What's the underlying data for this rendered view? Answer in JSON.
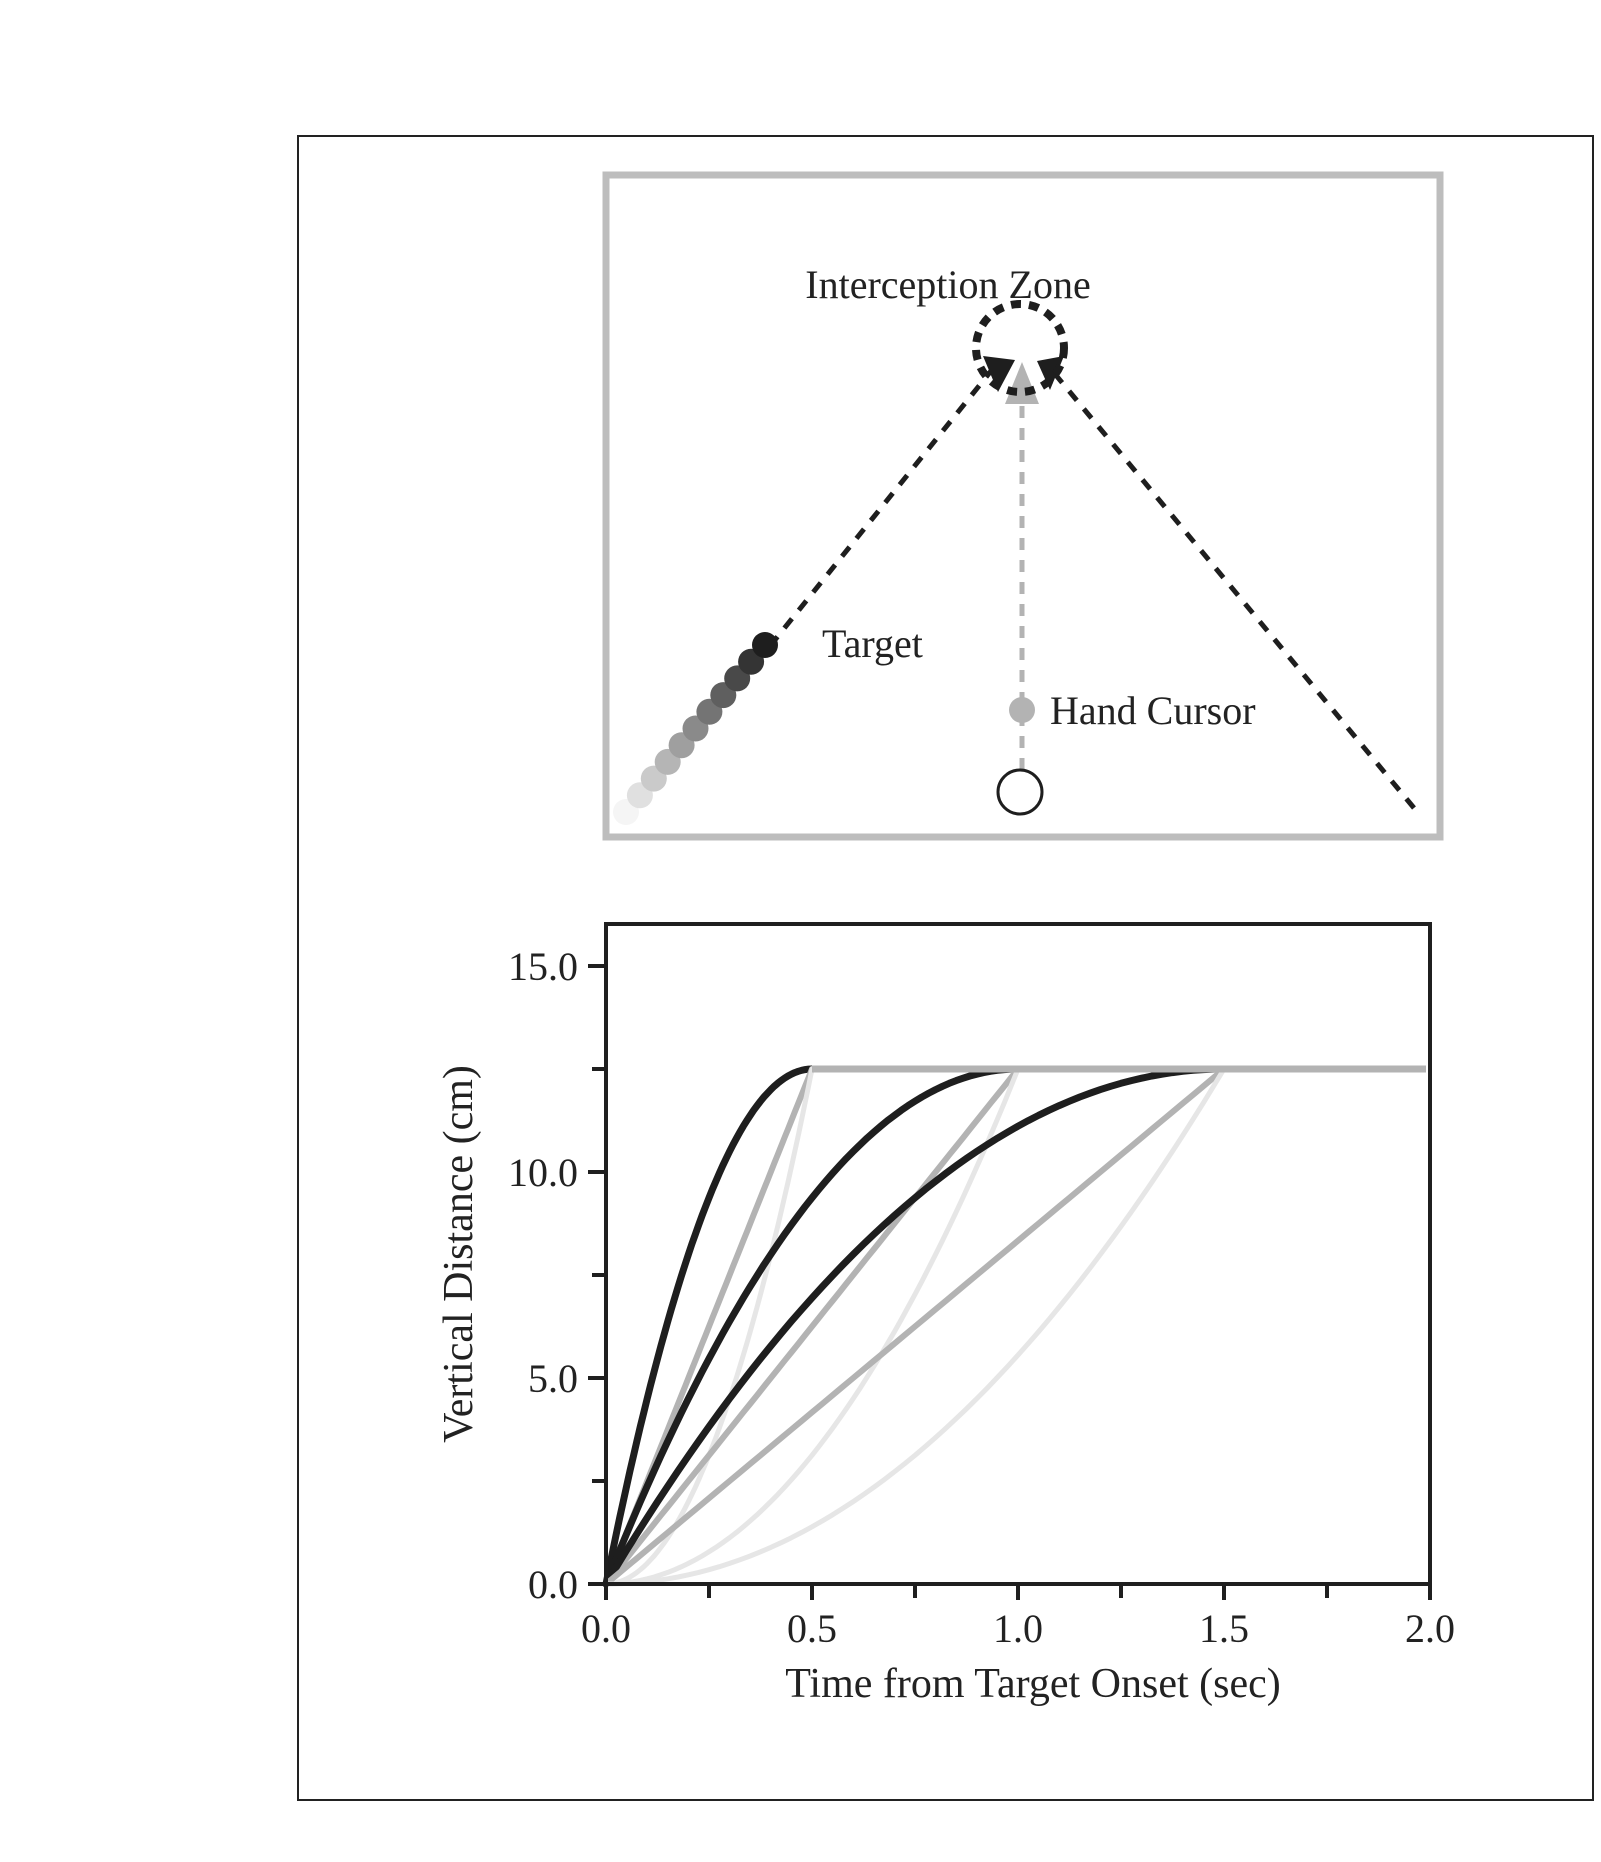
{
  "colors": {
    "dark": "#1e1e1e",
    "mid": "#b3b3b3",
    "light": "#e6e6e6",
    "frame": "#bdbdbd",
    "axis": "#1f1f1f"
  },
  "diagram": {
    "zone_label": "Interception Zone",
    "target_label": "Target",
    "cursor_label": "Hand Cursor",
    "icons": [
      "interception-zone-circle",
      "target-dot",
      "hand-cursor-dot",
      "start-circle",
      "arrow-head"
    ]
  },
  "chart_data": {
    "type": "line",
    "title": "",
    "xlabel": "Time from Target Onset (sec)",
    "ylabel": "Vertical Distance (cm)",
    "xlim": [
      0,
      2.0
    ],
    "ylim": [
      0,
      15.0
    ],
    "x_ticks": [
      "0.0",
      "0.5",
      "1.0",
      "1.5",
      "2.0"
    ],
    "y_ticks": [
      "0.0",
      "5.0",
      "10.0",
      "15.0"
    ],
    "x_tick_values": [
      0,
      0.5,
      1.0,
      1.5,
      2.0
    ],
    "y_tick_values": [
      0,
      5,
      10,
      15
    ],
    "x_minor_ticks": [
      0.25,
      0.75,
      1.25,
      1.75
    ],
    "y_minor_ticks": [
      2.5,
      7.5,
      12.5
    ],
    "plateau": 12.5,
    "durations": [
      0.5,
      1.0,
      1.5
    ],
    "profiles": [
      "decelerating",
      "constant",
      "accelerating"
    ],
    "grid": false,
    "legend": "none"
  }
}
